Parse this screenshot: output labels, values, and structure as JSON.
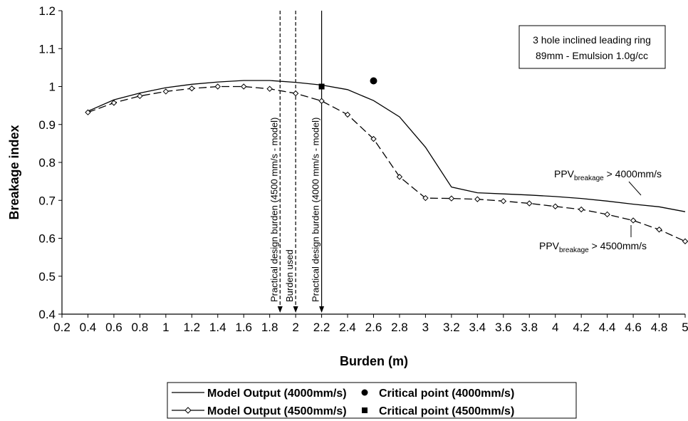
{
  "chart_data": {
    "type": "line",
    "title": "",
    "xlabel": "Burden (m)",
    "ylabel": "Breakage index",
    "xlim": [
      0.2,
      5
    ],
    "ylim": [
      0.4,
      1.2
    ],
    "x_ticks": [
      "0.2",
      "0.4",
      "0.6",
      "0.8",
      "1",
      "1.2",
      "1.4",
      "1.6",
      "1.8",
      "2",
      "2.2",
      "2.4",
      "2.6",
      "2.8",
      "3",
      "3.2",
      "3.4",
      "3.6",
      "3.8",
      "4",
      "4.2",
      "4.4",
      "4.6",
      "4.8",
      "5"
    ],
    "y_ticks": [
      "0.4",
      "0.5",
      "0.6",
      "0.7",
      "0.8",
      "0.9",
      "1",
      "1.1",
      "1.2"
    ],
    "grid": false,
    "legend_position": "bottom",
    "series": [
      {
        "name": "Model Output (4000mm/s)",
        "style": "solid",
        "x": [
          0.4,
          0.6,
          0.8,
          1.0,
          1.2,
          1.4,
          1.6,
          1.8,
          2.0,
          2.2,
          2.4,
          2.6,
          2.8,
          3.0,
          3.2,
          3.4,
          3.6,
          3.8,
          4.0,
          4.2,
          4.4,
          4.6,
          4.8,
          5.0
        ],
        "y": [
          0.935,
          0.965,
          0.983,
          0.997,
          1.006,
          1.012,
          1.016,
          1.016,
          1.011,
          1.004,
          0.992,
          0.963,
          0.92,
          0.84,
          0.735,
          0.72,
          0.717,
          0.714,
          0.71,
          0.705,
          0.698,
          0.69,
          0.683,
          0.67
        ]
      },
      {
        "name": "Model Output (4500mm/s)",
        "style": "dashed-diamond",
        "x": [
          0.4,
          0.6,
          0.8,
          1.0,
          1.2,
          1.4,
          1.6,
          1.8,
          2.0,
          2.2,
          2.4,
          2.6,
          2.8,
          3.0,
          3.2,
          3.4,
          3.6,
          3.8,
          4.0,
          4.2,
          4.4,
          4.6,
          4.8,
          5.0
        ],
        "y": [
          0.932,
          0.957,
          0.975,
          0.987,
          0.995,
          1.0,
          1.0,
          0.994,
          0.982,
          0.962,
          0.926,
          0.862,
          0.762,
          0.706,
          0.705,
          0.703,
          0.698,
          0.692,
          0.684,
          0.676,
          0.663,
          0.647,
          0.623,
          0.592
        ]
      }
    ],
    "points": [
      {
        "name": "Critical point (4000mm/s)",
        "marker": "circle",
        "x": 2.6,
        "y": 1.015
      },
      {
        "name": "Critical point (4500mm/s)",
        "marker": "square",
        "x": 2.2,
        "y": 1.0
      }
    ],
    "vertical_lines": [
      {
        "x": 1.88,
        "style": "dashed",
        "label": "Practical design burden (4500 mm/s - model)"
      },
      {
        "x": 2.0,
        "style": "dashed",
        "label": "Burden used"
      },
      {
        "x": 2.2,
        "style": "solid",
        "label": "Practical design burden (4000 mm/s - model)"
      }
    ],
    "annotations": {
      "box_line1": "3 hole inclined leading ring",
      "box_line2": "89mm - Emulsion 1.0g/cc",
      "ppv_prefix": "PPV",
      "ppv_sub": "breakage",
      "ppv4000_suffix": " > 4000mm/s",
      "ppv4500_suffix": " > 4500mm/s"
    }
  }
}
